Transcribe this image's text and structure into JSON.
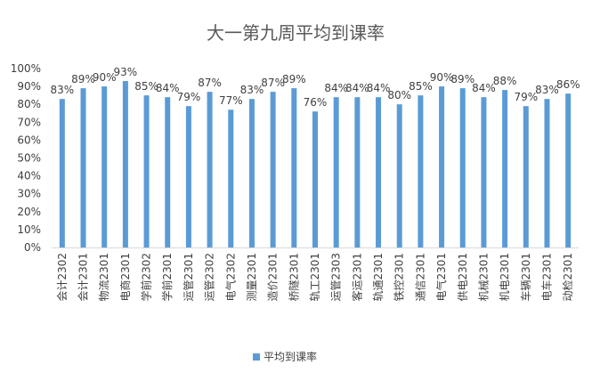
{
  "chart_data": {
    "type": "bar",
    "title": "大一第九周平均到课率",
    "xlabel": "",
    "ylabel": "",
    "ylim": [
      0,
      100
    ],
    "yticks": [
      "0%",
      "10%",
      "20%",
      "30%",
      "40%",
      "50%",
      "60%",
      "70%",
      "80%",
      "90%",
      "100%"
    ],
    "grid": false,
    "legend_position": "bottom",
    "bar_color": "#5B9BD5",
    "categories": [
      "会计2302",
      "会计2301",
      "物流2301",
      "电商2301",
      "学前2302",
      "学前2301",
      "运管2301",
      "运管2302",
      "电气2302",
      "测量2301",
      "造价2301",
      "桥隧2301",
      "轨工2301",
      "运管2303",
      "客运2301",
      "轨通2301",
      "铁控2301",
      "通信2301",
      "电气2301",
      "供电2301",
      "机械2301",
      "机电2301",
      "车辆2301",
      "电车2301",
      "动检2301"
    ],
    "series": [
      {
        "name": "平均到课率",
        "values": [
          83,
          89,
          90,
          93,
          85,
          84,
          79,
          87,
          77,
          83,
          87,
          89,
          76,
          84,
          84,
          84,
          80,
          85,
          90,
          89,
          84,
          88,
          79,
          83,
          86
        ],
        "labels": [
          "83%",
          "89%",
          "90%",
          "93%",
          "85%",
          "84%",
          "79%",
          "87%",
          "77%",
          "83%",
          "87%",
          "89%",
          "76%",
          "84%",
          "84%",
          "84%",
          "80%",
          "85%",
          "90%",
          "89%",
          "84%",
          "88%",
          "79%",
          "83%",
          "86%"
        ]
      }
    ]
  }
}
